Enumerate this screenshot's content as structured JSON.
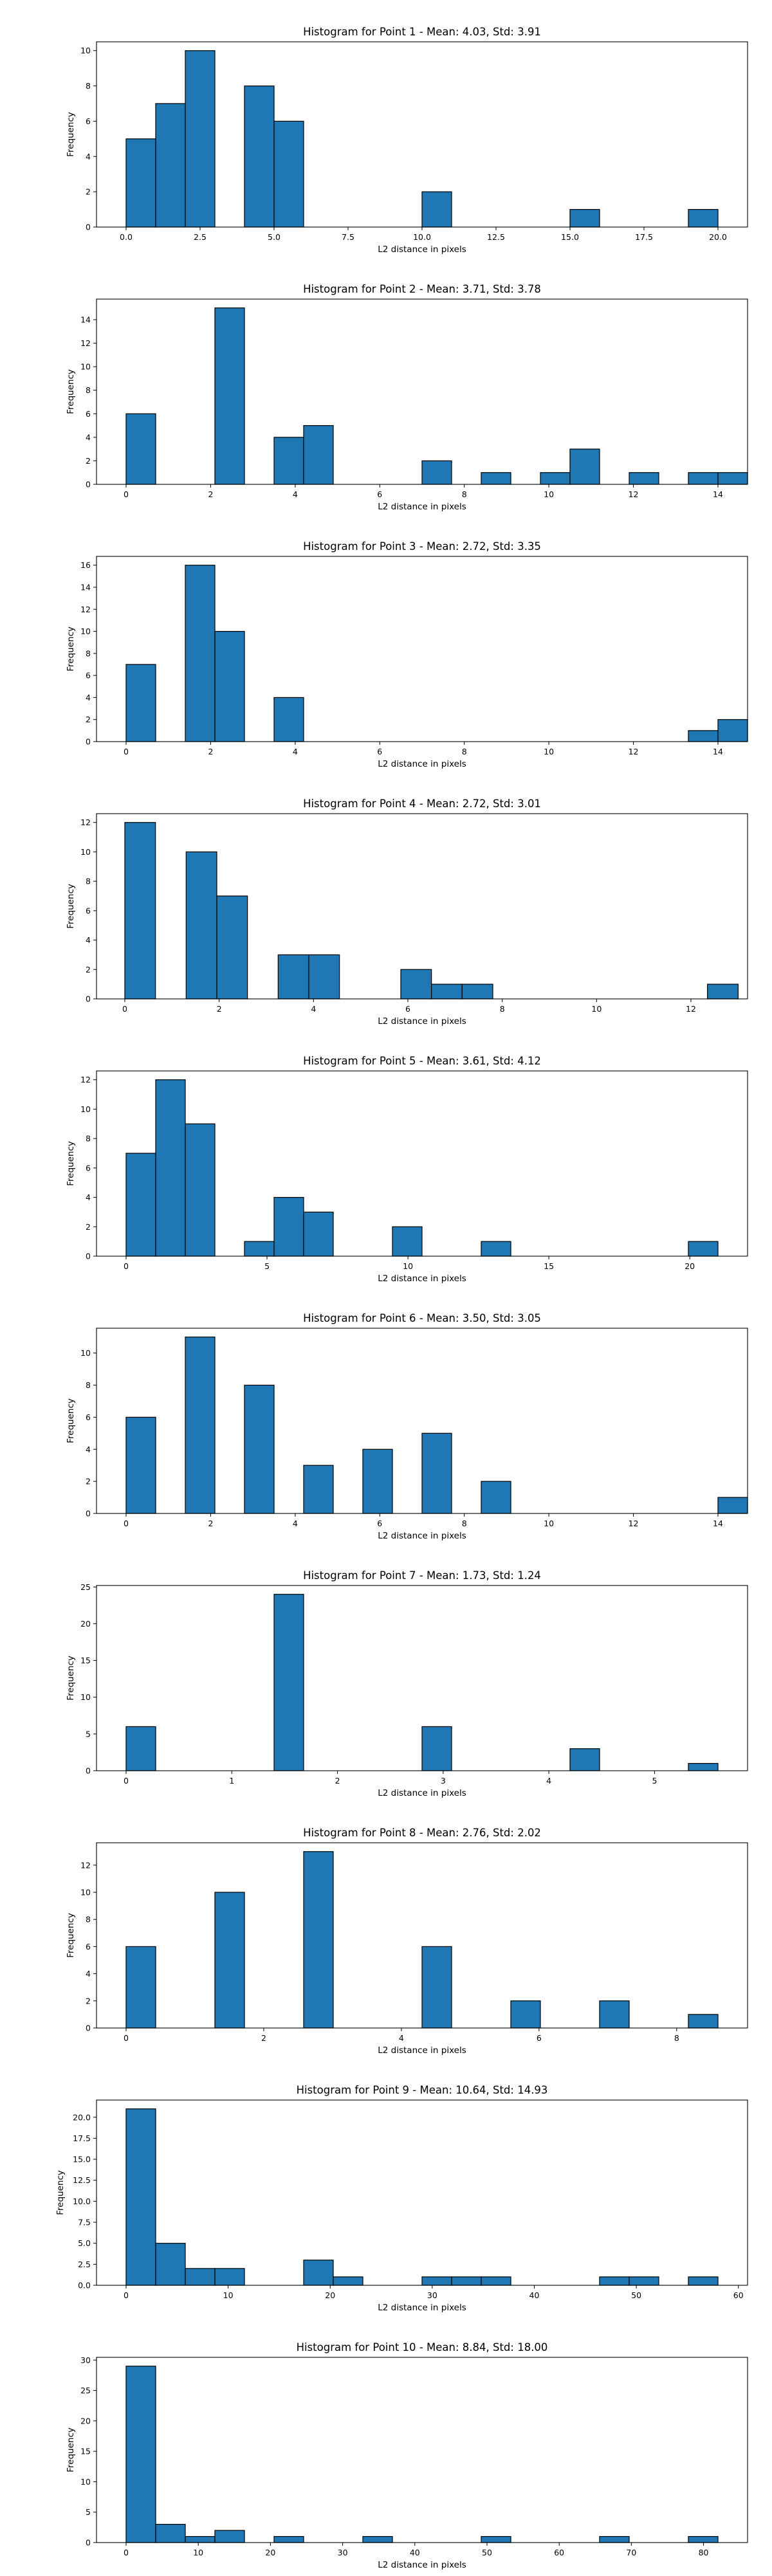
{
  "chart_data": [
    {
      "type": "bar",
      "title": "Histogram for Point 1 - Mean: 4.03, Std: 3.91",
      "xlabel": "L2 distance in pixels",
      "ylabel": "Frequency",
      "xlim": [
        -1.0,
        21.0
      ],
      "ylim": [
        0,
        10.5
      ],
      "xticks": [
        0.0,
        2.5,
        5.0,
        7.5,
        10.0,
        12.5,
        15.0,
        17.5,
        20.0
      ],
      "xtick_labels": [
        "0.0",
        "2.5",
        "5.0",
        "7.5",
        "10.0",
        "12.5",
        "15.0",
        "17.5",
        "20.0"
      ],
      "yticks": [
        0,
        2,
        4,
        6,
        8,
        10
      ],
      "ytick_labels": [
        "0",
        "2",
        "4",
        "6",
        "8",
        "10"
      ],
      "bin_start": 0.0,
      "bin_width": 1.0,
      "values": [
        5,
        7,
        10,
        0,
        8,
        6,
        0,
        0,
        0,
        0,
        2,
        0,
        0,
        0,
        0,
        1,
        0,
        0,
        0,
        1
      ]
    },
    {
      "type": "bar",
      "title": "Histogram for Point 2 - Mean: 3.71, Std: 3.78",
      "xlabel": "L2 distance in pixels",
      "ylabel": "Frequency",
      "xlim": [
        -0.7,
        14.7
      ],
      "ylim": [
        0,
        15.75
      ],
      "xticks": [
        0,
        2,
        4,
        6,
        8,
        10,
        12,
        14
      ],
      "xtick_labels": [
        "0",
        "2",
        "4",
        "6",
        "8",
        "10",
        "12",
        "14"
      ],
      "yticks": [
        0,
        2,
        4,
        6,
        8,
        10,
        12,
        14
      ],
      "ytick_labels": [
        "0",
        "2",
        "4",
        "6",
        "8",
        "10",
        "12",
        "14"
      ],
      "bin_start": 0.0,
      "bin_width": 0.7,
      "values": [
        6,
        0,
        0,
        15,
        0,
        4,
        5,
        0,
        0,
        0,
        2,
        0,
        1,
        0,
        1,
        3,
        0,
        1,
        0,
        1,
        1
      ]
    },
    {
      "type": "bar",
      "title": "Histogram for Point 3 - Mean: 2.72, Std: 3.35",
      "xlabel": "L2 distance in pixels",
      "ylabel": "Frequency",
      "xlim": [
        -0.7,
        14.7
      ],
      "ylim": [
        0,
        16.8
      ],
      "xticks": [
        0,
        2,
        4,
        6,
        8,
        10,
        12,
        14
      ],
      "xtick_labels": [
        "0",
        "2",
        "4",
        "6",
        "8",
        "10",
        "12",
        "14"
      ],
      "yticks": [
        0,
        2,
        4,
        6,
        8,
        10,
        12,
        14,
        16
      ],
      "ytick_labels": [
        "0",
        "2",
        "4",
        "6",
        "8",
        "10",
        "12",
        "14",
        "16"
      ],
      "bin_start": 0.0,
      "bin_width": 0.7,
      "values": [
        7,
        0,
        16,
        10,
        0,
        4,
        0,
        0,
        0,
        0,
        0,
        0,
        0,
        0,
        0,
        0,
        0,
        0,
        0,
        1,
        2
      ]
    },
    {
      "type": "bar",
      "title": "Histogram for Point 4 - Mean: 2.72, Std: 3.01",
      "xlabel": "L2 distance in pixels",
      "ylabel": "Frequency",
      "xlim": [
        -0.6,
        13.2
      ],
      "ylim": [
        0,
        12.6
      ],
      "xticks": [
        0,
        2,
        4,
        6,
        8,
        10,
        12
      ],
      "xtick_labels": [
        "0",
        "2",
        "4",
        "6",
        "8",
        "10",
        "12"
      ],
      "yticks": [
        0,
        2,
        4,
        6,
        8,
        10,
        12
      ],
      "ytick_labels": [
        "0",
        "2",
        "4",
        "6",
        "8",
        "10",
        "12"
      ],
      "bin_start": 0.0,
      "bin_width": 0.65,
      "values": [
        12,
        0,
        10,
        7,
        0,
        3,
        3,
        0,
        0,
        2,
        1,
        1,
        0,
        0,
        0,
        0,
        0,
        0,
        0,
        1
      ]
    },
    {
      "type": "bar",
      "title": "Histogram for Point 5 - Mean: 3.61, Std: 4.12",
      "xlabel": "L2 distance in pixels",
      "ylabel": "Frequency",
      "xlim": [
        -1.05,
        22.05
      ],
      "ylim": [
        0,
        12.6
      ],
      "xticks": [
        0,
        5,
        10,
        15,
        20
      ],
      "xtick_labels": [
        "0",
        "5",
        "10",
        "15",
        "20"
      ],
      "yticks": [
        0,
        2,
        4,
        6,
        8,
        10,
        12
      ],
      "ytick_labels": [
        "0",
        "2",
        "4",
        "6",
        "8",
        "10",
        "12"
      ],
      "bin_start": 0.0,
      "bin_width": 1.05,
      "values": [
        7,
        12,
        9,
        0,
        1,
        4,
        3,
        0,
        0,
        2,
        0,
        0,
        1,
        0,
        0,
        0,
        0,
        0,
        0,
        1
      ]
    },
    {
      "type": "bar",
      "title": "Histogram for Point 6 - Mean: 3.50, Std: 3.05",
      "xlabel": "L2 distance in pixels",
      "ylabel": "Frequency",
      "xlim": [
        -0.7,
        14.7
      ],
      "ylim": [
        0,
        11.55
      ],
      "xticks": [
        0,
        2,
        4,
        6,
        8,
        10,
        12,
        14
      ],
      "xtick_labels": [
        "0",
        "2",
        "4",
        "6",
        "8",
        "10",
        "12",
        "14"
      ],
      "yticks": [
        0,
        2,
        4,
        6,
        8,
        10
      ],
      "ytick_labels": [
        "0",
        "2",
        "4",
        "6",
        "8",
        "10"
      ],
      "bin_start": 0.0,
      "bin_width": 0.7,
      "values": [
        6,
        0,
        11,
        0,
        8,
        0,
        3,
        0,
        4,
        0,
        5,
        0,
        2,
        0,
        0,
        0,
        0,
        0,
        0,
        0,
        1
      ]
    },
    {
      "type": "bar",
      "title": "Histogram for Point 7 - Mean: 1.73, Std: 1.24",
      "xlabel": "L2 distance in pixels",
      "ylabel": "Frequency",
      "xlim": [
        -0.28,
        5.88
      ],
      "ylim": [
        0,
        25.2
      ],
      "xticks": [
        0,
        1,
        2,
        3,
        4,
        5
      ],
      "xtick_labels": [
        "0",
        "1",
        "2",
        "3",
        "4",
        "5"
      ],
      "yticks": [
        0,
        5,
        10,
        15,
        20,
        25
      ],
      "ytick_labels": [
        "0",
        "5",
        "10",
        "15",
        "20",
        "25"
      ],
      "bin_start": 0.0,
      "bin_width": 0.28,
      "values": [
        6,
        0,
        0,
        0,
        0,
        24,
        0,
        0,
        0,
        0,
        6,
        0,
        0,
        0,
        0,
        3,
        0,
        0,
        0,
        1
      ]
    },
    {
      "type": "bar",
      "title": "Histogram for Point 8 - Mean: 2.76, Std: 2.02",
      "xlabel": "L2 distance in pixels",
      "ylabel": "Frequency",
      "xlim": [
        -0.43,
        9.03
      ],
      "ylim": [
        0,
        13.65
      ],
      "xticks": [
        0,
        2,
        4,
        6,
        8
      ],
      "xtick_labels": [
        "0",
        "2",
        "4",
        "6",
        "8"
      ],
      "yticks": [
        0,
        2,
        4,
        6,
        8,
        10,
        12
      ],
      "ytick_labels": [
        "0",
        "2",
        "4",
        "6",
        "8",
        "10",
        "12"
      ],
      "bin_start": 0.0,
      "bin_width": 0.43,
      "values": [
        6,
        0,
        0,
        10,
        0,
        0,
        13,
        0,
        0,
        0,
        6,
        0,
        0,
        2,
        0,
        0,
        2,
        0,
        0,
        1
      ]
    },
    {
      "type": "bar",
      "title": "Histogram for Point 9 - Mean: 10.64, Std: 14.93",
      "xlabel": "L2 distance in pixels",
      "ylabel": "Frequency",
      "xlim": [
        -2.9,
        60.9
      ],
      "ylim": [
        0,
        22.05
      ],
      "xticks": [
        0,
        10,
        20,
        30,
        40,
        50,
        60
      ],
      "xtick_labels": [
        "0",
        "10",
        "20",
        "30",
        "40",
        "50",
        "60"
      ],
      "yticks": [
        0,
        2.5,
        5.0,
        7.5,
        10.0,
        12.5,
        15.0,
        17.5,
        20.0
      ],
      "ytick_labels": [
        "0.0",
        "2.5",
        "5.0",
        "7.5",
        "10.0",
        "12.5",
        "15.0",
        "17.5",
        "20.0"
      ],
      "bin_start": 0.0,
      "bin_width": 2.9,
      "values": [
        21,
        5,
        2,
        2,
        0,
        0,
        3,
        1,
        0,
        0,
        1,
        1,
        1,
        0,
        0,
        0,
        1,
        1,
        0,
        1
      ]
    },
    {
      "type": "bar",
      "title": "Histogram for Point 10 - Mean: 8.84, Std: 18.00",
      "xlabel": "L2 distance in pixels",
      "ylabel": "Frequency",
      "xlim": [
        -4.1,
        86.1
      ],
      "ylim": [
        0,
        30.45
      ],
      "xticks": [
        0,
        10,
        20,
        30,
        40,
        50,
        60,
        70,
        80
      ],
      "xtick_labels": [
        "0",
        "10",
        "20",
        "30",
        "40",
        "50",
        "60",
        "70",
        "80"
      ],
      "yticks": [
        0,
        5,
        10,
        15,
        20,
        25,
        30
      ],
      "ytick_labels": [
        "0",
        "5",
        "10",
        "15",
        "20",
        "25",
        "30"
      ],
      "bin_start": 0.0,
      "bin_width": 4.1,
      "values": [
        29,
        3,
        1,
        2,
        0,
        1,
        0,
        0,
        1,
        0,
        0,
        0,
        1,
        0,
        0,
        0,
        1,
        0,
        0,
        1
      ]
    }
  ],
  "colors": {
    "bar_fill": "#1f77b4",
    "bar_edge": "#000000",
    "axes": "#000000",
    "background": "#ffffff"
  }
}
